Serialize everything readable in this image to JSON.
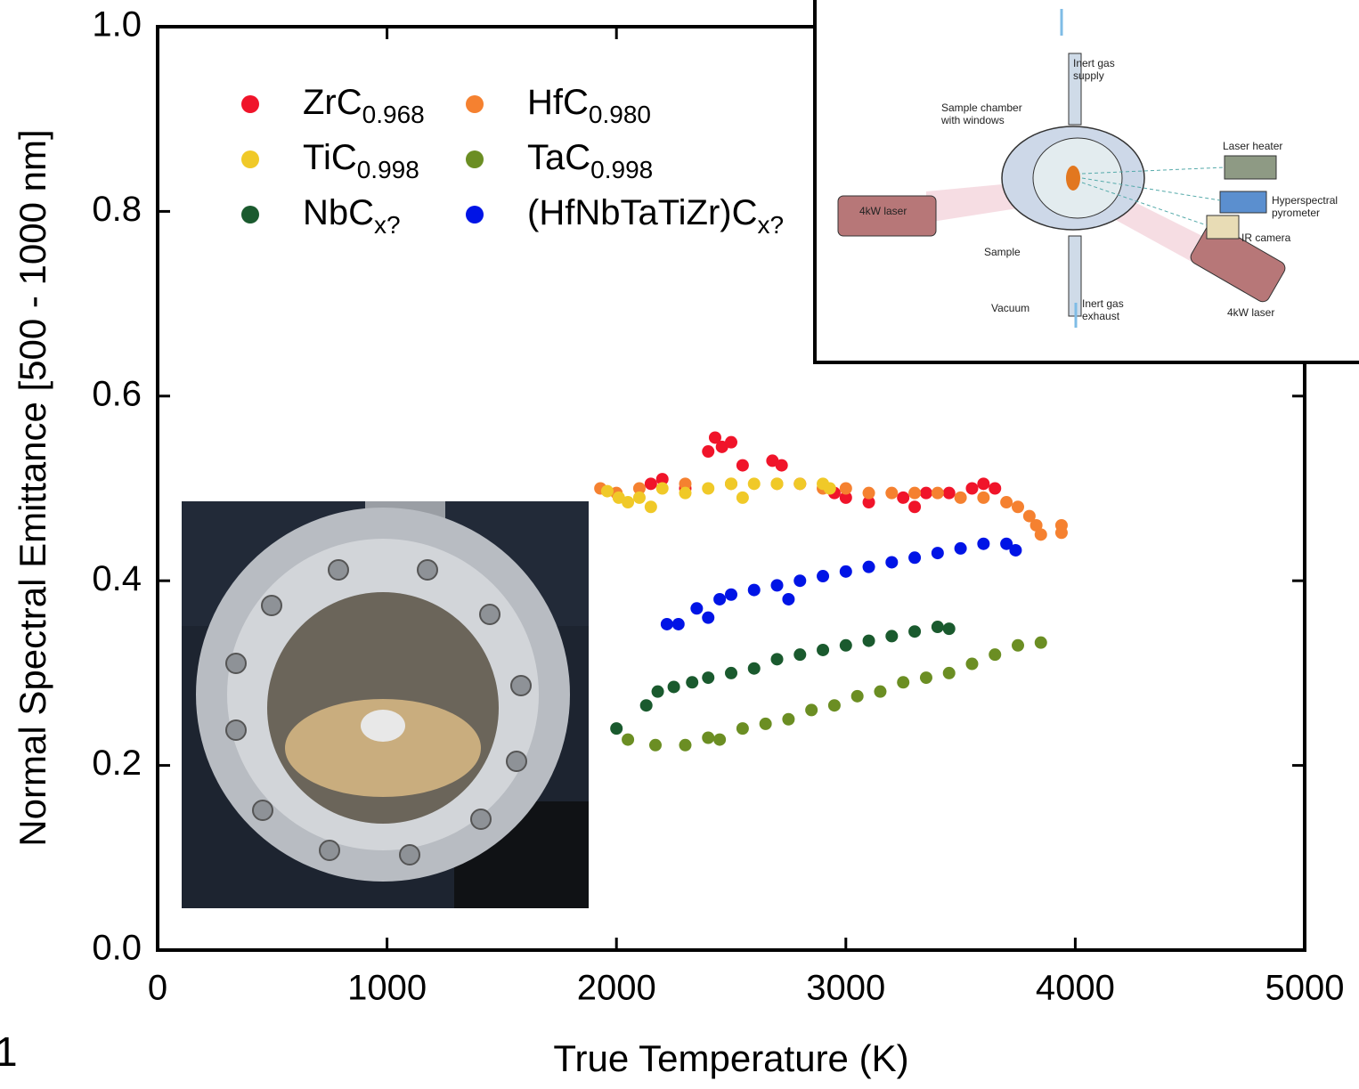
{
  "chart_data": {
    "type": "scatter",
    "x_label": "True Temperature (K)",
    "y_label": "Normal Spectral Emittance [500 - 1000 nm]",
    "xlim": [
      0,
      5000
    ],
    "xticks": [
      0,
      1000,
      2000,
      3000,
      4000,
      5000
    ],
    "ylim": [
      0,
      1
    ],
    "yticks": [
      {
        "value": 0,
        "label": "0.0"
      },
      0.2,
      0.4,
      0.6,
      0.8,
      {
        "value": 1,
        "label": "1.0"
      }
    ],
    "grid": false,
    "legend_position": "upper left",
    "series": [
      {
        "name": "ZrC0.968",
        "color": "#f0142a",
        "x": [
          2150,
          2200,
          2300,
          2400,
          2430,
          2460,
          2500,
          2550,
          2680,
          2720,
          2800,
          2950,
          3000,
          3100,
          3250,
          3300,
          3350,
          3450,
          3550,
          3600,
          3650
        ],
        "values": [
          0.505,
          0.51,
          0.5,
          0.54,
          0.555,
          0.545,
          0.55,
          0.525,
          0.53,
          0.525,
          0.505,
          0.495,
          0.49,
          0.485,
          0.49,
          0.48,
          0.495,
          0.495,
          0.5,
          0.505,
          0.5
        ]
      },
      {
        "name": "HfC0.980",
        "color": "#f58130",
        "x": [
          1930,
          2000,
          2100,
          2300,
          2500,
          2700,
          2900,
          3000,
          3100,
          3200,
          3300,
          3400,
          3500,
          3600,
          3700,
          3750,
          3800,
          3830,
          3850,
          3940,
          3940
        ],
        "values": [
          0.5,
          0.495,
          0.5,
          0.505,
          0.505,
          0.505,
          0.5,
          0.5,
          0.495,
          0.495,
          0.495,
          0.495,
          0.49,
          0.49,
          0.485,
          0.48,
          0.47,
          0.46,
          0.45,
          0.46,
          0.452
        ]
      },
      {
        "name": "TiC0.998",
        "color": "#f0c928",
        "x": [
          1960,
          2010,
          2050,
          2100,
          2150,
          2200,
          2300,
          2400,
          2500,
          2550,
          2600,
          2700,
          2800,
          2900,
          2930
        ],
        "values": [
          0.497,
          0.49,
          0.485,
          0.49,
          0.48,
          0.5,
          0.495,
          0.5,
          0.505,
          0.49,
          0.505,
          0.505,
          0.505,
          0.505,
          0.5
        ]
      },
      {
        "name": "TaC0.998",
        "color": "#6b8e23",
        "x": [
          2050,
          2170,
          2300,
          2400,
          2450,
          2550,
          2650,
          2750,
          2850,
          2950,
          3050,
          3150,
          3250,
          3350,
          3450,
          3550,
          3650,
          3750,
          3850
        ],
        "values": [
          0.228,
          0.222,
          0.222,
          0.23,
          0.228,
          0.24,
          0.245,
          0.25,
          0.26,
          0.265,
          0.275,
          0.28,
          0.29,
          0.295,
          0.3,
          0.31,
          0.32,
          0.33,
          0.333
        ]
      },
      {
        "name": "NbCx?",
        "color": "#1a5a2e",
        "x": [
          2000,
          2130,
          2180,
          2250,
          2330,
          2400,
          2500,
          2600,
          2700,
          2800,
          2900,
          3000,
          3100,
          3200,
          3300,
          3400,
          3450
        ],
        "values": [
          0.24,
          0.265,
          0.28,
          0.285,
          0.29,
          0.295,
          0.3,
          0.305,
          0.315,
          0.32,
          0.325,
          0.33,
          0.335,
          0.34,
          0.345,
          0.35,
          0.348
        ]
      },
      {
        "name": "(HfNbTaTiZr)Cx?",
        "color": "#0014e6",
        "x": [
          2220,
          2270,
          2350,
          2400,
          2450,
          2500,
          2600,
          2700,
          2750,
          2800,
          2900,
          3000,
          3100,
          3200,
          3300,
          3400,
          3500,
          3600,
          3700,
          3740
        ],
        "values": [
          0.353,
          0.353,
          0.37,
          0.36,
          0.38,
          0.385,
          0.39,
          0.395,
          0.38,
          0.4,
          0.405,
          0.41,
          0.415,
          0.42,
          0.425,
          0.43,
          0.435,
          0.44,
          0.44,
          0.433
        ]
      }
    ]
  },
  "panel_label": "1",
  "diagram_inset": {
    "labels": [
      [
        "Inert gas",
        "supply"
      ],
      [
        "Sample chamber",
        "with windows"
      ],
      [
        "Laser heater"
      ],
      [
        "4kW laser"
      ],
      [
        "Hyperspectral",
        "pyrometer"
      ],
      [
        "IR camera"
      ],
      [
        "Sample"
      ],
      [
        "Vacuum"
      ],
      [
        "Inert gas",
        "exhaust"
      ],
      [
        "4kW laser"
      ]
    ]
  }
}
